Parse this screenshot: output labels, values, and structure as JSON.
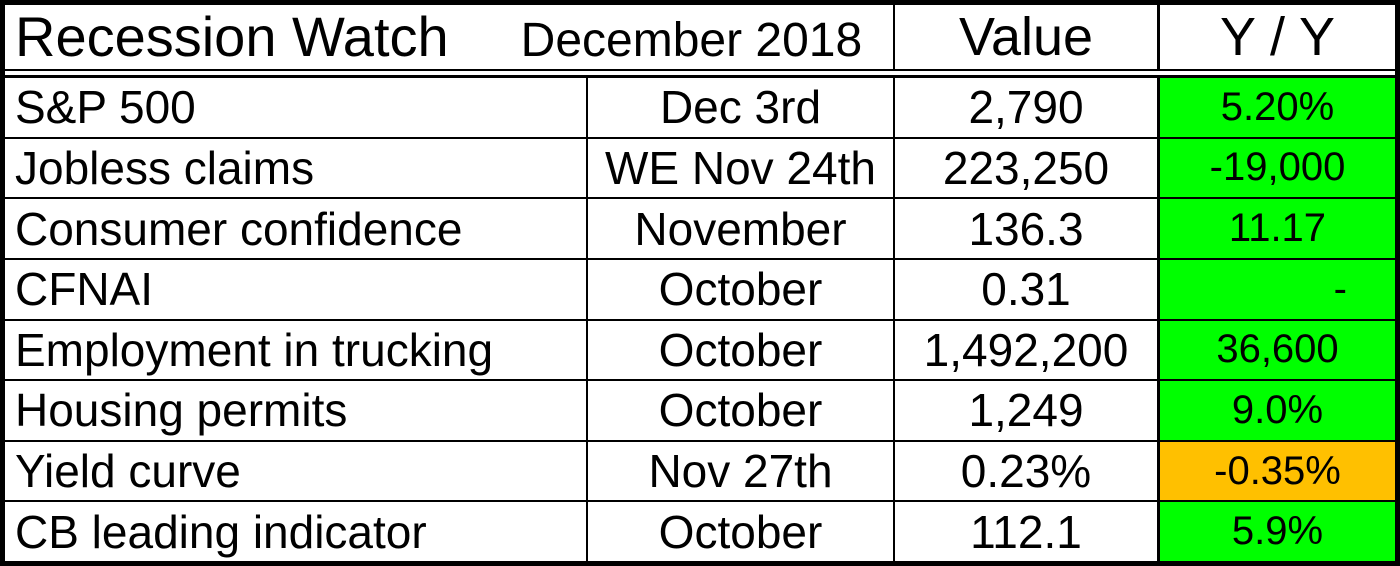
{
  "table": {
    "title": "Recession Watch",
    "subtitle": "December 2018",
    "columns": {
      "value": "Value",
      "yoy": "Y / Y"
    },
    "colors": {
      "positive": "#00ff00",
      "warning": "#ffc000",
      "border": "#000000",
      "background": "#ffffff",
      "text": "#000000"
    },
    "rows": [
      {
        "label": "S&P 500",
        "period": "Dec 3rd",
        "value": "2,790",
        "yoy": "5.20%",
        "status": "positive"
      },
      {
        "label": "Jobless claims",
        "period": "WE Nov 24th",
        "value": "223,250",
        "yoy": "-19,000",
        "status": "positive"
      },
      {
        "label": "Consumer confidence",
        "period": "November",
        "value": "136.3",
        "yoy": "11.17",
        "status": "positive"
      },
      {
        "label": "CFNAI",
        "period": "October",
        "value": "0.31",
        "yoy": "-",
        "status": "positive",
        "yoy_align": "right"
      },
      {
        "label": "Employment in trucking",
        "period": "October",
        "value": "1,492,200",
        "yoy": "36,600",
        "status": "positive"
      },
      {
        "label": "Housing permits",
        "period": "October",
        "value": "1,249",
        "yoy": "9.0%",
        "status": "positive"
      },
      {
        "label": "Yield curve",
        "period": "Nov 27th",
        "value": "0.23%",
        "yoy": "-0.35%",
        "status": "warning"
      },
      {
        "label": "CB leading indicator",
        "period": "October",
        "value": "112.1",
        "yoy": "5.9%",
        "status": "positive"
      }
    ]
  }
}
